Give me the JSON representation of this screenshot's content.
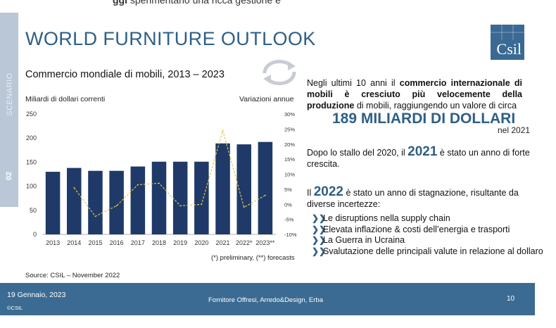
{
  "top_fragment": {
    "bold": "ggi",
    "rest": " sperimentano una ricca gestione e"
  },
  "sidebar": {
    "label": "SCENARIO",
    "number": "02"
  },
  "title": "WORLD FURNITURE OUTLOOK",
  "logo": "Csil",
  "chart_data": {
    "type": "bar",
    "title": "Commercio mondiale di mobili, 2013 – 2023",
    "ylabel_left": "Miliardi di dollari correnti",
    "ylabel_right": "Variazioni annue",
    "categories": [
      "2013",
      "2014",
      "2015",
      "2016",
      "2017",
      "2018",
      "2019",
      "2020",
      "2021",
      "2022*",
      "2023**"
    ],
    "series": [
      {
        "name": "Commercio mondiale",
        "type": "bar",
        "axis": "left",
        "color": "#1f3a68",
        "values": [
          130,
          138,
          132,
          132,
          141,
          151,
          151,
          151,
          189,
          187,
          192
        ]
      },
      {
        "name": "Variazioni annue",
        "type": "line",
        "axis": "right",
        "style": "dashed",
        "color": "#e8c545",
        "values": [
          null,
          5.5,
          -4,
          -0.5,
          6.5,
          7,
          -0.5,
          0,
          24.5,
          -1,
          3
        ]
      }
    ],
    "ylim_left": [
      0,
      250
    ],
    "yticks_left": [
      "0",
      "50",
      "100",
      "150",
      "200",
      "250"
    ],
    "ylim_right": [
      -10,
      30
    ],
    "yticks_right": [
      "-10%",
      "-5%",
      "0%",
      "5%",
      "10%",
      "15%",
      "20%",
      "25%",
      "30%"
    ],
    "note": "(*) preliminary, (**) forecasts",
    "source": "Source: CSIL – November 2022"
  },
  "text": {
    "p1_a": "Negli ultimi 10 anni il ",
    "p1_b": "commercio internazionale di mobili è cresciuto più velocemente della produzione",
    "p1_c": " di mobili, raggiungendo un valore di circa",
    "big_value": "189 MILIARDI DI DOLLARI",
    "big_year": "nel 2021",
    "p2_a": "Dopo lo stallo del 2020, il ",
    "p2_year": "2021",
    "p2_b": " è stato un anno di forte crescita.",
    "p3_a": "Il ",
    "p3_year": "2022",
    "p3_b": " è stato un anno di stagnazione, risultante da diverse incertezze:",
    "bullets": [
      "Le disruptions nella supply chain",
      "Elevata inflazione & costi dell’energia e trasporti",
      "La Guerra in Ucraina",
      "Svalutazione delle principali valute in relazione al dollaro"
    ]
  },
  "footer": {
    "date": "19 Gennaio, 2023",
    "copyright": "©CSIL",
    "center": "Fornitore Offresi, Arredo&Design, Erba",
    "page": "10"
  },
  "colors": {
    "accent": "#2e5f86",
    "bar": "#1f3a68",
    "line": "#e8c545",
    "footer": "#3b6b93"
  }
}
